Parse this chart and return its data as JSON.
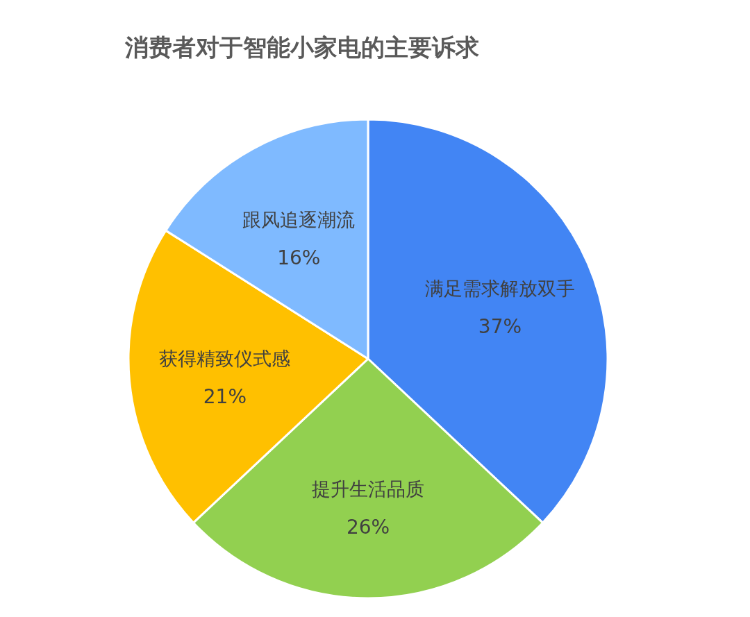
{
  "chart_data": {
    "type": "pie",
    "title": "消费者对于智能小家电的主要诉求",
    "categories": [
      "满足需求解放双手",
      "提升生活品质",
      "获得精致仪式感",
      "跟风追逐潮流"
    ],
    "values": [
      37,
      26,
      21,
      16
    ],
    "colors": [
      "#4285f4",
      "#92d050",
      "#ffc000",
      "#7fbaff"
    ],
    "value_labels": [
      "37%",
      "26%",
      "21%",
      "16%"
    ]
  }
}
